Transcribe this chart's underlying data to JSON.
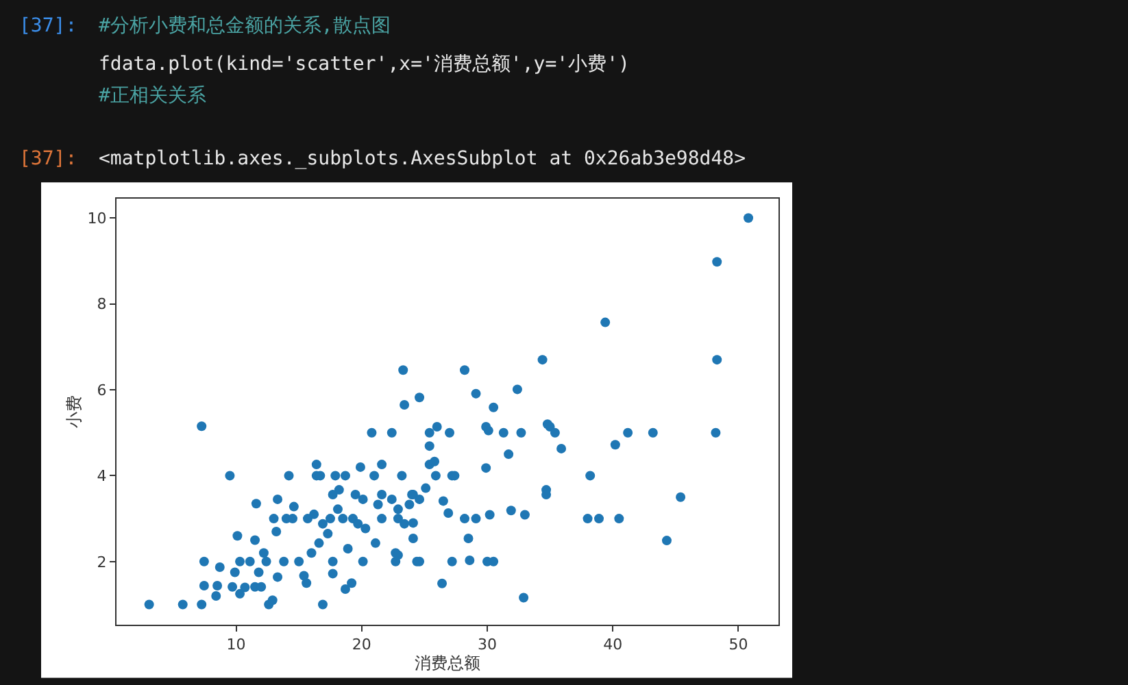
{
  "chart_data": {
    "type": "scatter",
    "xlabel": "消费总额",
    "ylabel": "小费",
    "xlim": [
      0.47,
      53.2
    ],
    "ylim": [
      0.53,
      10.45
    ],
    "xticks": [
      10,
      20,
      30,
      40,
      50
    ],
    "yticks": [
      2,
      4,
      6,
      8,
      10
    ],
    "grid": false,
    "marker": "circle",
    "annotations": [
      "[37]:",
      "#分析小费和总金额的关系,散点图",
      "fdata.plot(kind='scatter',x='消费总额',y='小费')",
      "#正相关关系",
      "[37]:",
      "<matplotlib.axes._subplots.AxesSubplot at 0x26ab3e98d48>"
    ],
    "series": [
      {
        "color": "#1f77b4",
        "x": [
          3.07,
          5.75,
          7.25,
          7.25,
          7.45,
          7.45,
          8.5,
          8.4,
          8.7,
          9.5,
          10.1,
          11.5,
          11.6,
          12.6,
          12.9,
          13.3,
          13.3,
          13.2,
          12.2,
          14.2,
          14.0,
          14.6,
          15.4,
          15.6,
          15.7,
          16.2,
          16.4,
          16.4,
          16.6,
          16.9,
          16.7,
          17.3,
          17.7,
          17.7,
          17.9,
          18.2,
          18.7,
          19.2,
          18.7,
          18.9,
          19.5,
          19.9,
          20.1,
          20.3,
          20.8,
          21.0,
          21.1,
          21.3,
          21.6,
          21.6,
          22.4,
          22.4,
          22.7,
          22.7,
          23.2,
          23.3,
          23.4,
          23.4,
          23.8,
          24.1,
          24.6,
          24.4,
          25.4,
          25.4,
          25.4,
          25.8,
          25.9,
          26.0,
          24.0,
          24.6,
          25.1,
          22.9,
          22.9,
          24.1,
          24.1,
          22.9,
          24.6,
          26.4,
          26.5,
          26.9,
          27.0,
          27.2,
          27.4,
          27.2,
          28.2,
          28.2,
          28.5,
          28.6,
          29.1,
          29.1,
          29.9,
          30.1,
          29.9,
          30.2,
          30.0,
          30.5,
          30.5,
          31.3,
          31.7,
          31.9,
          32.4,
          32.7,
          32.9,
          33.0,
          34.4,
          34.7,
          34.7,
          34.8,
          35.0,
          35.4,
          35.9,
          38.0,
          38.2,
          38.9,
          39.4,
          40.2,
          40.5,
          41.2,
          43.2,
          44.3,
          45.4,
          48.2,
          48.3,
          48.3,
          50.8,
          9.9,
          10.3,
          10.7,
          11.1,
          11.8,
          12.4,
          13.8,
          15.0,
          16.0,
          16.9,
          17.5,
          18.5,
          19.3,
          19.7,
          10.3,
          9.7,
          11.5,
          12.0,
          13.0,
          14.5,
          17.7,
          18.1,
          20.1,
          21.6
        ],
        "values": [
          1.0,
          1.0,
          1.0,
          5.15,
          2.0,
          1.44,
          1.44,
          1.2,
          1.87,
          4.0,
          2.6,
          2.5,
          3.35,
          1.0,
          1.1,
          3.45,
          1.64,
          2.7,
          2.2,
          4.0,
          3.0,
          3.28,
          1.67,
          1.5,
          3.0,
          3.1,
          4.0,
          4.26,
          2.43,
          1.0,
          4.0,
          2.65,
          2.0,
          1.72,
          4.0,
          3.67,
          1.36,
          1.5,
          4.0,
          2.3,
          3.56,
          4.2,
          2.0,
          2.77,
          5.0,
          4.0,
          2.43,
          3.33,
          4.26,
          3.56,
          5.0,
          3.45,
          2.0,
          2.2,
          4.0,
          6.46,
          5.65,
          2.88,
          3.33,
          3.56,
          5.82,
          2.0,
          5.0,
          4.69,
          4.26,
          4.33,
          4.0,
          5.14,
          3.56,
          3.45,
          3.71,
          3.22,
          3.0,
          2.9,
          2.54,
          2.15,
          2.0,
          1.49,
          3.41,
          3.13,
          5.0,
          4.0,
          4.0,
          2.0,
          6.46,
          3.0,
          2.54,
          2.03,
          5.91,
          3.0,
          5.14,
          5.05,
          4.18,
          3.09,
          2.0,
          2.0,
          5.59,
          5.0,
          4.5,
          3.19,
          6.01,
          5.0,
          1.16,
          3.09,
          6.7,
          3.67,
          3.56,
          5.2,
          5.14,
          5.0,
          4.63,
          3.0,
          4.0,
          3.0,
          7.57,
          4.72,
          3.0,
          5.0,
          5.0,
          2.49,
          3.5,
          5.0,
          8.98,
          6.7,
          10.0,
          1.75,
          2.0,
          1.4,
          2.0,
          1.75,
          2.0,
          2.0,
          2.0,
          2.2,
          2.88,
          3.0,
          3.0,
          3.0,
          2.88,
          1.25,
          1.41,
          1.41,
          1.41,
          3.0,
          3.0,
          3.56,
          3.22,
          3.45,
          3.0
        ]
      }
    ]
  }
}
